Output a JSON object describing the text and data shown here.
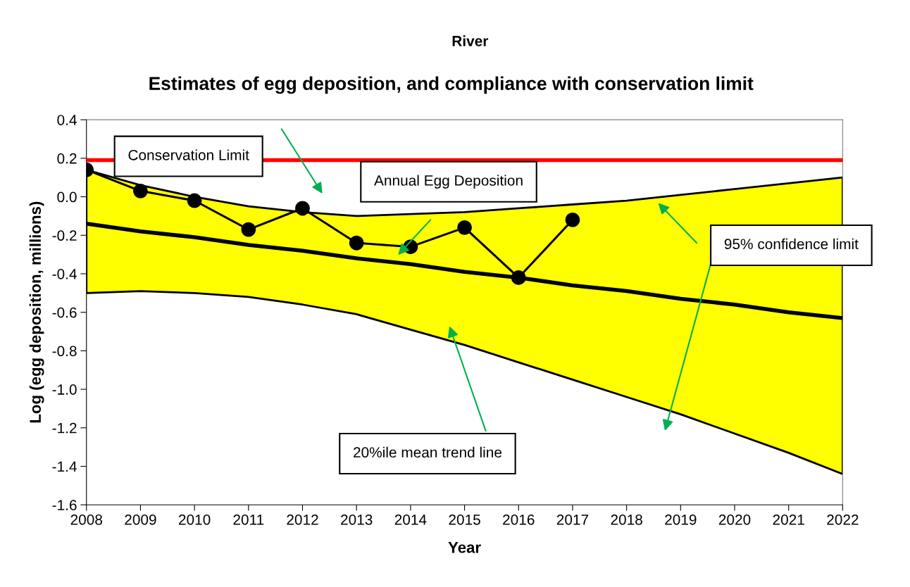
{
  "chart_data": {
    "type": "line",
    "title": "Estimates of egg deposition, and compliance with conservation limit",
    "subtitle": "River",
    "xlabel": "Year",
    "ylabel": "Log (egg deposition, millions)",
    "xlim": [
      2008,
      2022
    ],
    "xticks": [
      2008,
      2009,
      2010,
      2011,
      2012,
      2013,
      2014,
      2015,
      2016,
      2017,
      2018,
      2019,
      2020,
      2021,
      2022
    ],
    "ylim": [
      -1.6,
      0.4
    ],
    "yticks": [
      {
        "value": -1.6,
        "label": "-1.6"
      },
      {
        "value": -1.4,
        "label": "-1.4"
      },
      {
        "value": -1.2,
        "label": "-1.2"
      },
      {
        "value": -1.0,
        "label": "-1.0"
      },
      {
        "value": -0.8,
        "label": "-0.8"
      },
      {
        "value": -0.6,
        "label": "-0.6"
      },
      {
        "value": -0.4,
        "label": "-0.4"
      },
      {
        "value": -0.2,
        "label": "-0.2"
      },
      {
        "value": 0.0,
        "label": "0.0"
      },
      {
        "value": 0.2,
        "label": "0.2"
      },
      {
        "value": 0.4,
        "label": "0.4"
      }
    ],
    "grid": false,
    "legend": false,
    "series": [
      {
        "type": "line",
        "color": "#000000",
        "x": [
          2008,
          2009,
          2010,
          2011,
          2012,
          2013,
          2014,
          2015,
          2016,
          2017,
          2018,
          2019,
          2020,
          2021,
          2022
        ],
        "values": [
          -0.14,
          -0.18,
          -0.21,
          -0.25,
          -0.28,
          -0.32,
          -0.35,
          -0.39,
          -0.42,
          -0.46,
          -0.49,
          -0.53,
          -0.56,
          -0.6,
          -0.63
        ],
        "marker": "none",
        "line_style": "solid",
        "lower": [
          -0.5,
          -0.49,
          -0.5,
          -0.52,
          -0.56,
          -0.61,
          -0.69,
          -0.77,
          -0.86,
          -0.95,
          -1.04,
          -1.13,
          -1.23,
          -1.33,
          -1.44
        ],
        "upper": [
          0.14,
          0.06,
          0.0,
          -0.05,
          -0.08,
          -0.1,
          -0.09,
          -0.08,
          -0.06,
          -0.04,
          -0.02,
          0.01,
          0.04,
          0.07,
          0.1
        ]
      },
      {
        "color": "#000000",
        "x": [
          2008,
          2009,
          2010,
          2011,
          2012,
          2013,
          2014,
          2015,
          2016,
          2017
        ],
        "values": [
          0.14,
          0.03,
          -0.02,
          -0.17,
          -0.06,
          -0.24,
          -0.26,
          -0.16,
          -0.42,
          -0.12
        ],
        "marker": "circle",
        "line_style": "solid"
      }
    ],
    "ref_lines": [
      {
        "axis": "y",
        "value": 0.19,
        "color": "#ff0000",
        "line_style": "solid"
      }
    ],
    "annotations": [
      "Conservation Limit",
      "Annual Egg Deposition",
      "95% confidence limit",
      "20%ile mean trend line"
    ]
  }
}
